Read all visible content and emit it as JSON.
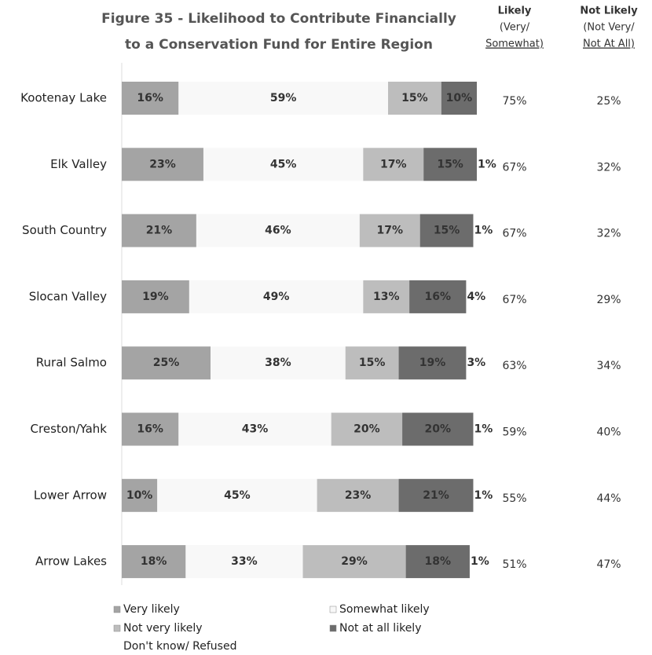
{
  "chart_data": {
    "type": "bar",
    "orientation": "horizontal",
    "stacked": true,
    "title": [
      "Figure 35 - Likelihood to Contribute Financially",
      "to a Conservation Fund for Entire Region"
    ],
    "categories": [
      "Kootenay Lake",
      "Elk Valley",
      "South Country",
      "Slocan Valley",
      "Rural Salmo",
      "Creston/Yahk",
      "Lower Arrow",
      "Arrow Lakes"
    ],
    "series": [
      {
        "name": "Very likely",
        "color": "#a4a4a4",
        "label_color": "#333333",
        "values": [
          16,
          23,
          21,
          19,
          25,
          16,
          10,
          18
        ],
        "value_labels": [
          "16%",
          "23%",
          "21%",
          "19%",
          "25%",
          "16%",
          "10%",
          "18%"
        ]
      },
      {
        "name": "Somewhat likely",
        "color": "#f8f8f8",
        "label_color": "#333333",
        "values": [
          59,
          45,
          46,
          49,
          38,
          43,
          45,
          33
        ],
        "value_labels": [
          "59%",
          "45%",
          "46%",
          "49%",
          "38%",
          "43%",
          "45%",
          "33%"
        ]
      },
      {
        "name": "Not very likely",
        "color": "#bdbdbd",
        "label_color": "#333333",
        "values": [
          15,
          17,
          17,
          13,
          15,
          20,
          23,
          29
        ],
        "value_labels": [
          "15%",
          "17%",
          "17%",
          "13%",
          "15%",
          "20%",
          "23%",
          "29%"
        ]
      },
      {
        "name": "Not at all likely",
        "color": "#6c6c6c",
        "label_color": "#ffffff",
        "values": [
          10,
          15,
          15,
          16,
          19,
          20,
          21,
          18
        ],
        "value_labels": [
          "10%",
          "15%",
          "15%",
          "16%",
          "19%",
          "20%",
          "21%",
          "18%"
        ]
      },
      {
        "name": "Don't know/ Refused",
        "color": "#ffffff",
        "label_color": "#444444",
        "label_position": "outside",
        "values": [
          null,
          1,
          1,
          4,
          3,
          1,
          1,
          1
        ],
        "value_labels": [
          null,
          "1%",
          "1%",
          "4%",
          "3%",
          "1%",
          "1%",
          "1%"
        ]
      }
    ],
    "summary_columns": [
      {
        "header": [
          "Likely",
          "(Very/",
          "Somewhat)"
        ],
        "values": [
          75,
          67,
          67,
          67,
          63,
          59,
          55,
          51
        ],
        "value_labels": [
          "75%",
          "67%",
          "67%",
          "67%",
          "63%",
          "59%",
          "55%",
          "51%"
        ]
      },
      {
        "header": [
          "Not Likely",
          "(Not Very/",
          "Not At All)"
        ],
        "values": [
          25,
          32,
          32,
          29,
          34,
          40,
          44,
          47
        ],
        "value_labels": [
          "25%",
          "32%",
          "32%",
          "29%",
          "34%",
          "40%",
          "44%",
          "47%"
        ]
      }
    ],
    "legend": "bottom"
  }
}
